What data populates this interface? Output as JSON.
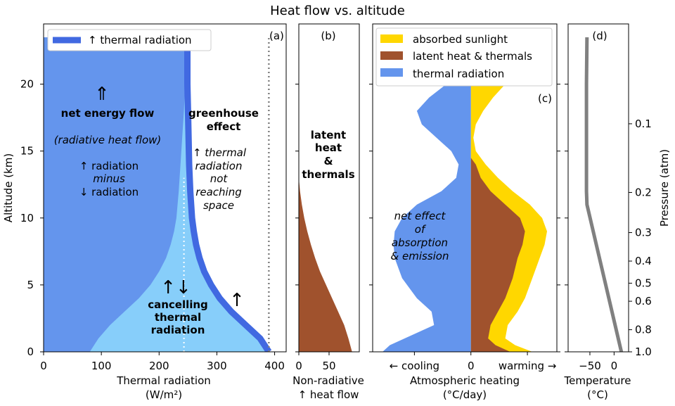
{
  "title": "Heat flow vs. altitude",
  "chart_data": [
    {
      "panel": "(a)",
      "type": "area",
      "xlabel_line1": "Thermal radiation",
      "xlabel_line2": "(W/m²)",
      "ylabel": "Altitude  (km)",
      "xlim": [
        0,
        420
      ],
      "ylim": [
        0,
        24.5
      ],
      "xticks": [
        "0",
        "100",
        "200",
        "300",
        "400"
      ],
      "xtick_values": [
        0,
        100,
        200,
        300,
        400
      ],
      "yticks": [
        "0",
        "5",
        "10",
        "15",
        "20"
      ],
      "ytick_values": [
        0,
        5,
        10,
        15,
        20
      ],
      "legend": "↑ thermal radiation",
      "series": [
        {
          "name": "upward thermal radiation (W/m²)",
          "color": "#4169e1",
          "points": [
            [
              390,
              0
            ],
            [
              375,
              1
            ],
            [
              350,
              2
            ],
            [
              325,
              3
            ],
            [
              305,
              4
            ],
            [
              290,
              5
            ],
            [
              278,
              6
            ],
            [
              270,
              7
            ],
            [
              264,
              8
            ],
            [
              260,
              9
            ],
            [
              257,
              10
            ],
            [
              254,
              12
            ],
            [
              252,
              14
            ],
            [
              251,
              16
            ],
            [
              250,
              18
            ],
            [
              249,
              20
            ],
            [
              249,
              22
            ],
            [
              249,
              23.5
            ]
          ]
        },
        {
          "name": "net energy flow (W/m²)",
          "color": "#6495ed",
          "points": [
            [
              80,
              0
            ],
            [
              95,
              1
            ],
            [
              115,
              2
            ],
            [
              140,
              3
            ],
            [
              165,
              4
            ],
            [
              185,
              5
            ],
            [
              200,
              6
            ],
            [
              212,
              7
            ],
            [
              220,
              8
            ],
            [
              226,
              9
            ],
            [
              230,
              10
            ],
            [
              234,
              12
            ],
            [
              237,
              14
            ],
            [
              240,
              16
            ],
            [
              243,
              18
            ],
            [
              245,
              20
            ],
            [
              246,
              22
            ],
            [
              246,
              23.5
            ]
          ]
        },
        {
          "name": "surface emission reference (W/m²)",
          "value": 390
        }
      ],
      "annotations": {
        "up_arrow": "⇑",
        "net_energy_flow": "net energy flow",
        "radiative": "(radiative heat flow)",
        "radiation_up": "↑  radiation",
        "minus": "minus",
        "radiation_down": "↓  radiation",
        "greenhouse_1": "greenhouse",
        "greenhouse_2": "effect",
        "gh_desc_1": "↑  thermal",
        "gh_desc_2": "radiation",
        "gh_desc_3": "not",
        "gh_desc_4": "reaching",
        "gh_desc_5": "space",
        "updown_arrows": "↑↓",
        "cancelling_1": "cancelling",
        "cancelling_2": "thermal",
        "cancelling_3": "radiation",
        "small_up_arrow": "↑"
      }
    },
    {
      "panel": "(b)",
      "type": "area",
      "xlabel_line1": "Non-radiative",
      "xlabel_line2": "↑  heat flow",
      "xlim": [
        0,
        100
      ],
      "xticks": [
        "0",
        "50"
      ],
      "xtick_values": [
        0,
        50
      ],
      "series": [
        {
          "name": "latent heat & thermals flow (W/m²)",
          "color": "#a0522d",
          "points": [
            [
              88,
              0
            ],
            [
              82,
              1
            ],
            [
              75,
              2
            ],
            [
              65,
              3
            ],
            [
              55,
              4
            ],
            [
              45,
              5
            ],
            [
              35,
              6
            ],
            [
              27,
              7
            ],
            [
              20,
              8
            ],
            [
              14,
              9
            ],
            [
              9,
              10
            ],
            [
              5,
              11
            ],
            [
              2,
              12
            ],
            [
              0,
              13
            ]
          ]
        }
      ],
      "annotations": {
        "label_1": "latent",
        "label_2": "heat",
        "label_3": "&",
        "label_4": "thermals"
      }
    },
    {
      "panel": "(c)",
      "type": "area",
      "xlabel_line1": "Atmospheric heating",
      "xlabel_line2": "(°C/day)",
      "xlim": [
        -4,
        3.5
      ],
      "xticks": [
        "← cooling",
        "0",
        "warming →"
      ],
      "xtick_values": [
        -2.3,
        0,
        2.3
      ],
      "legend": [
        "absorbed sunlight",
        "latent heat & thermals",
        "thermal radiation"
      ],
      "series": [
        {
          "name": "thermal radiation",
          "color": "#6495ed",
          "points": [
            [
              -3.6,
              0
            ],
            [
              -3.3,
              0.5
            ],
            [
              -2.7,
              1
            ],
            [
              -1.5,
              2
            ],
            [
              -1.6,
              3
            ],
            [
              -2.2,
              4
            ],
            [
              -2.8,
              5.5
            ],
            [
              -3.1,
              7
            ],
            [
              -3.15,
              8
            ],
            [
              -3.1,
              9
            ],
            [
              -2.8,
              10
            ],
            [
              -2.2,
              11
            ],
            [
              -1.2,
              12
            ],
            [
              -0.6,
              13
            ],
            [
              -0.5,
              14
            ],
            [
              -0.8,
              15
            ],
            [
              -1.4,
              16
            ],
            [
              -2.0,
              17
            ],
            [
              -2.2,
              18
            ],
            [
              -1.7,
              19
            ],
            [
              -1.0,
              20
            ]
          ]
        },
        {
          "name": "latent heat & thermals",
          "color": "#a0522d",
          "points": [
            [
              1.6,
              0
            ],
            [
              1.0,
              0.5
            ],
            [
              0.7,
              1
            ],
            [
              0.8,
              2
            ],
            [
              1.1,
              3
            ],
            [
              1.4,
              4
            ],
            [
              1.7,
              5.5
            ],
            [
              1.9,
              7
            ],
            [
              2.1,
              8
            ],
            [
              2.2,
              9
            ],
            [
              2.0,
              10
            ],
            [
              1.4,
              11
            ],
            [
              0.8,
              12
            ],
            [
              0.4,
              13
            ],
            [
              0.2,
              14
            ],
            [
              0,
              14.5
            ]
          ]
        },
        {
          "name": "absorbed sunlight (cumulative)",
          "color": "#ffd700",
          "points": [
            [
              2.5,
              0
            ],
            [
              1.8,
              0.5
            ],
            [
              1.4,
              1
            ],
            [
              1.5,
              2
            ],
            [
              1.9,
              3
            ],
            [
              2.2,
              4
            ],
            [
              2.5,
              5.5
            ],
            [
              2.8,
              7
            ],
            [
              3.0,
              8
            ],
            [
              3.1,
              9
            ],
            [
              2.9,
              10
            ],
            [
              2.4,
              11
            ],
            [
              1.7,
              12
            ],
            [
              1.1,
              13
            ],
            [
              0.6,
              14
            ],
            [
              0.2,
              15
            ],
            [
              0.1,
              16
            ],
            [
              0.2,
              17
            ],
            [
              0.5,
              18
            ],
            [
              0.9,
              19
            ],
            [
              1.4,
              20
            ]
          ]
        }
      ],
      "annotations": {
        "label_1": "net effect",
        "label_2": "of",
        "label_3": "absorption",
        "label_4": "& emission"
      }
    },
    {
      "panel": "(d)",
      "type": "line",
      "xlabel_line1": "Temperature",
      "xlabel_line2": "(°C)",
      "ylabel_right": "Pressure (atm)",
      "xlim": [
        -95,
        30
      ],
      "xticks": [
        "−50",
        "0"
      ],
      "xtick_values": [
        -50,
        0
      ],
      "pressure_ticks": [
        "0.1",
        "0.2",
        "0.3",
        "0.4",
        "0.5",
        "0.6",
        "0.8",
        "1.0"
      ],
      "pressure_tick_values": [
        0.1,
        0.2,
        0.3,
        0.4,
        0.5,
        0.6,
        0.8,
        1.0
      ],
      "series": [
        {
          "name": "temperature",
          "color": "#808080",
          "points": [
            [
              15,
              0
            ],
            [
              -56,
              11
            ],
            [
              -57,
              12
            ],
            [
              -57,
              15
            ],
            [
              -57,
              20
            ],
            [
              -56,
              23.5
            ]
          ]
        }
      ]
    }
  ]
}
